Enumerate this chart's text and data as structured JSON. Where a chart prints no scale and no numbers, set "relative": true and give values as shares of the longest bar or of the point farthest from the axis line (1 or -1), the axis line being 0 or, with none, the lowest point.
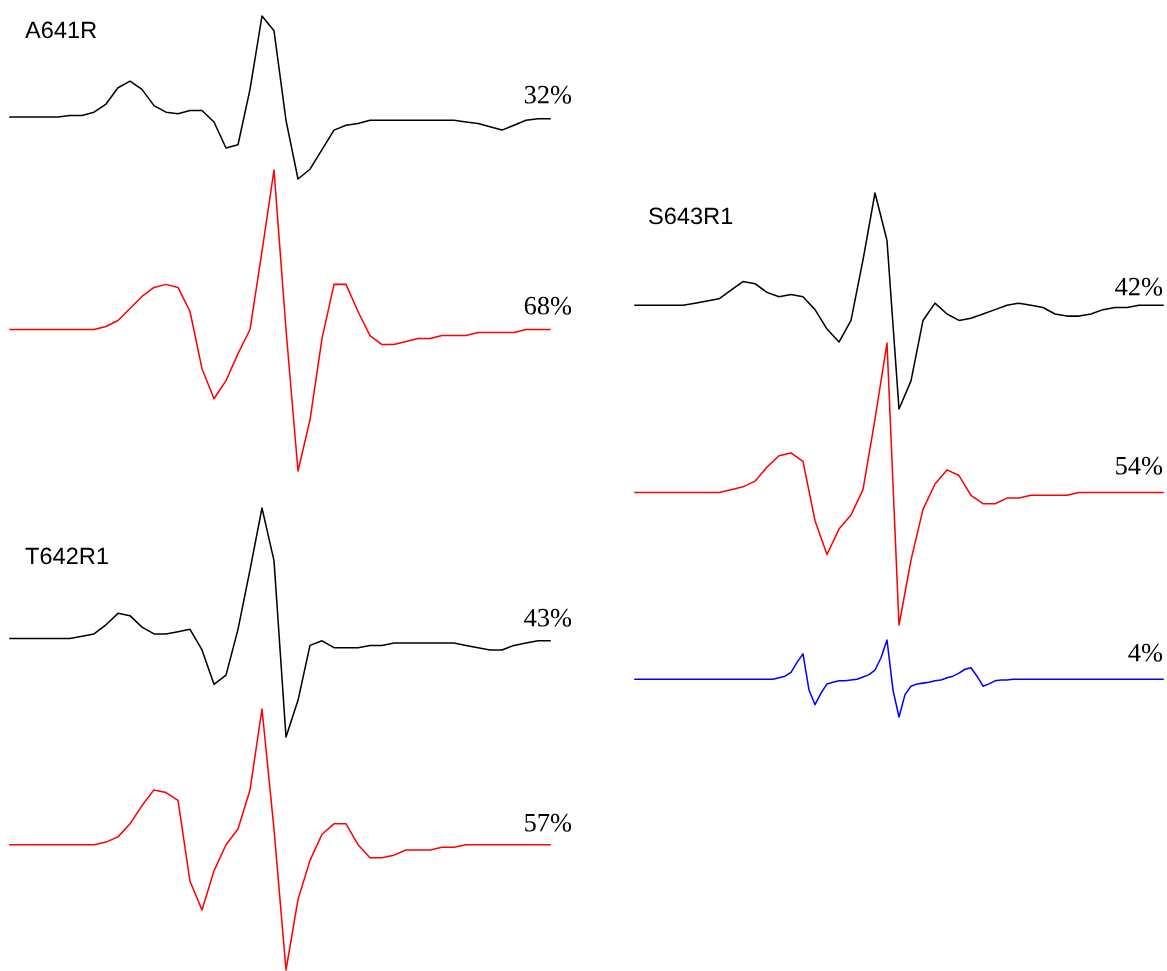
{
  "chart_data": [
    {
      "type": "line",
      "relative": true,
      "title": "A641R",
      "annotations": [
        "32%"
      ],
      "categories": [
        null,
        null,
        null,
        null,
        null,
        null,
        null,
        null,
        null,
        null,
        null,
        null,
        null,
        null,
        null,
        null,
        null,
        null,
        null,
        null,
        null,
        null,
        null,
        null,
        null,
        null,
        null,
        null,
        null,
        null,
        null,
        null,
        null,
        null,
        null,
        null,
        null,
        null,
        null,
        null,
        null,
        null,
        null,
        null,
        null,
        null
      ],
      "series": [
        {
          "color": "#000000",
          "values": [
            0.38,
            0.38,
            0.38,
            0.38,
            0.38,
            0.39,
            0.39,
            0.41,
            0.46,
            0.56,
            0.6,
            0.55,
            0.45,
            0.41,
            0.4,
            0.42,
            0.42,
            0.35,
            0.19,
            0.21,
            0.55,
            1,
            0.91,
            0.36,
            0,
            0.06,
            0.18,
            0.3,
            0.33,
            0.34,
            0.36,
            0.36,
            0.36,
            0.36,
            0.36,
            0.36,
            0.36,
            0.36,
            0.35,
            0.34,
            0.32,
            0.3,
            0.33,
            0.36,
            0.37,
            0.37
          ]
        }
      ]
    },
    {
      "type": "line",
      "relative": true,
      "annotations": [
        "68%"
      ],
      "categories": [
        null,
        null,
        null,
        null,
        null,
        null,
        null,
        null,
        null,
        null,
        null,
        null,
        null,
        null,
        null,
        null,
        null,
        null,
        null,
        null,
        null,
        null,
        null,
        null,
        null,
        null,
        null,
        null,
        null,
        null,
        null,
        null,
        null,
        null,
        null,
        null,
        null,
        null,
        null,
        null,
        null,
        null,
        null,
        null,
        null,
        null
      ],
      "series": [
        {
          "color": "#ff0000",
          "values": [
            0.47,
            0.47,
            0.47,
            0.47,
            0.47,
            0.47,
            0.47,
            0.47,
            0.48,
            0.5,
            0.54,
            0.58,
            0.61,
            0.62,
            0.61,
            0.53,
            0.34,
            0.24,
            0.3,
            0.39,
            0.47,
            0.73,
            1,
            0.47,
            0,
            0.17,
            0.44,
            0.62,
            0.62,
            0.53,
            0.45,
            0.42,
            0.42,
            0.43,
            0.44,
            0.44,
            0.45,
            0.45,
            0.45,
            0.46,
            0.46,
            0.46,
            0.46,
            0.47,
            0.47,
            0.47
          ]
        }
      ]
    },
    {
      "type": "line",
      "relative": true,
      "title": "T642R1",
      "annotations": [
        "43%"
      ],
      "categories": [
        null,
        null,
        null,
        null,
        null,
        null,
        null,
        null,
        null,
        null,
        null,
        null,
        null,
        null,
        null,
        null,
        null,
        null,
        null,
        null,
        null,
        null,
        null,
        null,
        null,
        null,
        null,
        null,
        null,
        null,
        null,
        null,
        null,
        null,
        null,
        null,
        null,
        null,
        null,
        null,
        null,
        null,
        null,
        null,
        null,
        null
      ],
      "series": [
        {
          "color": "#000000",
          "values": [
            0.43,
            0.43,
            0.43,
            0.43,
            0.43,
            0.43,
            0.44,
            0.45,
            0.49,
            0.54,
            0.53,
            0.48,
            0.45,
            0.45,
            0.46,
            0.47,
            0.38,
            0.23,
            0.27,
            0.47,
            0.73,
            1,
            0.77,
            0,
            0.16,
            0.4,
            0.42,
            0.39,
            0.39,
            0.39,
            0.4,
            0.4,
            0.41,
            0.41,
            0.41,
            0.41,
            0.41,
            0.41,
            0.4,
            0.39,
            0.38,
            0.38,
            0.4,
            0.41,
            0.42,
            0.42
          ]
        }
      ]
    },
    {
      "type": "line",
      "relative": true,
      "annotations": [
        "57%"
      ],
      "categories": [
        null,
        null,
        null,
        null,
        null,
        null,
        null,
        null,
        null,
        null,
        null,
        null,
        null,
        null,
        null,
        null,
        null,
        null,
        null,
        null,
        null,
        null,
        null,
        null,
        null,
        null,
        null,
        null,
        null,
        null,
        null,
        null,
        null,
        null,
        null,
        null,
        null,
        null,
        null,
        null,
        null,
        null,
        null,
        null,
        null,
        null
      ],
      "series": [
        {
          "color": "#ff0000",
          "values": [
            0.48,
            0.48,
            0.48,
            0.48,
            0.48,
            0.48,
            0.48,
            0.48,
            0.49,
            0.51,
            0.56,
            0.63,
            0.69,
            0.68,
            0.65,
            0.34,
            0.23,
            0.38,
            0.48,
            0.54,
            0.69,
            1,
            0.54,
            0,
            0.27,
            0.42,
            0.52,
            0.56,
            0.56,
            0.48,
            0.43,
            0.43,
            0.44,
            0.46,
            0.46,
            0.46,
            0.47,
            0.47,
            0.48,
            0.48,
            0.48,
            0.48,
            0.48,
            0.48,
            0.48,
            0.48
          ]
        }
      ]
    },
    {
      "type": "line",
      "relative": true,
      "title": "S643R1",
      "annotations": [
        "42%"
      ],
      "categories": [
        null,
        null,
        null,
        null,
        null,
        null,
        null,
        null,
        null,
        null,
        null,
        null,
        null,
        null,
        null,
        null,
        null,
        null,
        null,
        null,
        null,
        null,
        null,
        null,
        null,
        null,
        null,
        null,
        null,
        null,
        null,
        null,
        null,
        null,
        null,
        null,
        null,
        null,
        null,
        null,
        null,
        null,
        null,
        null,
        null
      ],
      "series": [
        {
          "color": "#000000",
          "values": [
            0.48,
            0.48,
            0.48,
            0.48,
            0.48,
            0.49,
            0.5,
            0.51,
            0.55,
            0.59,
            0.58,
            0.54,
            0.52,
            0.53,
            0.52,
            0.46,
            0.37,
            0.31,
            0.41,
            0.69,
            1,
            0.78,
            0,
            0.13,
            0.41,
            0.49,
            0.44,
            0.41,
            0.42,
            0.44,
            0.46,
            0.48,
            0.49,
            0.48,
            0.47,
            0.44,
            0.43,
            0.43,
            0.44,
            0.46,
            0.47,
            0.47,
            0.48,
            0.48,
            0.48
          ]
        }
      ]
    },
    {
      "type": "line",
      "relative": true,
      "annotations": [
        "54%"
      ],
      "categories": [
        null,
        null,
        null,
        null,
        null,
        null,
        null,
        null,
        null,
        null,
        null,
        null,
        null,
        null,
        null,
        null,
        null,
        null,
        null,
        null,
        null,
        null,
        null,
        null,
        null,
        null,
        null,
        null,
        null,
        null,
        null,
        null,
        null,
        null,
        null,
        null,
        null,
        null,
        null,
        null,
        null,
        null,
        null,
        null,
        null
      ],
      "series": [
        {
          "color": "#ff0000",
          "values": [
            0.47,
            0.47,
            0.47,
            0.47,
            0.47,
            0.47,
            0.47,
            0.47,
            0.48,
            0.49,
            0.51,
            0.56,
            0.6,
            0.61,
            0.58,
            0.37,
            0.25,
            0.34,
            0.39,
            0.48,
            0.73,
            1,
            0,
            0.23,
            0.41,
            0.5,
            0.55,
            0.53,
            0.46,
            0.43,
            0.43,
            0.45,
            0.45,
            0.46,
            0.46,
            0.46,
            0.46,
            0.47,
            0.47,
            0.47,
            0.47,
            0.47,
            0.47,
            0.47,
            0.47
          ]
        }
      ]
    },
    {
      "type": "line",
      "relative": true,
      "annotations": [
        "4%"
      ],
      "categories": [
        null,
        null,
        null,
        null,
        null,
        null,
        null,
        null,
        null,
        null,
        null,
        null,
        null,
        null,
        null,
        null,
        null,
        null,
        null,
        null,
        null,
        null,
        null,
        null,
        null,
        null,
        null,
        null,
        null,
        null,
        null,
        null,
        null,
        null,
        null,
        null,
        null,
        null,
        null,
        null,
        null,
        null,
        null,
        null,
        null,
        null,
        null,
        null,
        null,
        null,
        null,
        null,
        null,
        null,
        null,
        null,
        null,
        null,
        null,
        null,
        null,
        null,
        null,
        null,
        null,
        null,
        null,
        null,
        null,
        null,
        null,
        null,
        null,
        null,
        null,
        null,
        null,
        null,
        null,
        null,
        null,
        null,
        null,
        null,
        null,
        null,
        null,
        null,
        null
      ],
      "series": [
        {
          "color": "#0000ff",
          "values": [
            0.49,
            0.49,
            0.49,
            0.49,
            0.49,
            0.49,
            0.49,
            0.49,
            0.49,
            0.49,
            0.49,
            0.49,
            0.49,
            0.49,
            0.49,
            0.49,
            0.49,
            0.49,
            0.49,
            0.49,
            0.49,
            0.49,
            0.49,
            0.49,
            0.51,
            0.53,
            0.58,
            0.71,
            0.82,
            0.35,
            0.16,
            0.31,
            0.43,
            0.45,
            0.47,
            0.47,
            0.48,
            0.49,
            0.52,
            0.55,
            0.61,
            0.77,
            1,
            0.35,
            0,
            0.29,
            0.4,
            0.43,
            0.44,
            0.45,
            0.47,
            0.48,
            0.51,
            0.53,
            0.57,
            0.62,
            0.64,
            0.53,
            0.4,
            0.43,
            0.47,
            0.48,
            0.48,
            0.49,
            0.49,
            0.49,
            0.49,
            0.49,
            0.49,
            0.49,
            0.49,
            0.49,
            0.49,
            0.49,
            0.49,
            0.49,
            0.49,
            0.49,
            0.49,
            0.49,
            0.49,
            0.49,
            0.49,
            0.49,
            0.49,
            0.49,
            0.49,
            0.49,
            0.49
          ]
        }
      ]
    }
  ]
}
